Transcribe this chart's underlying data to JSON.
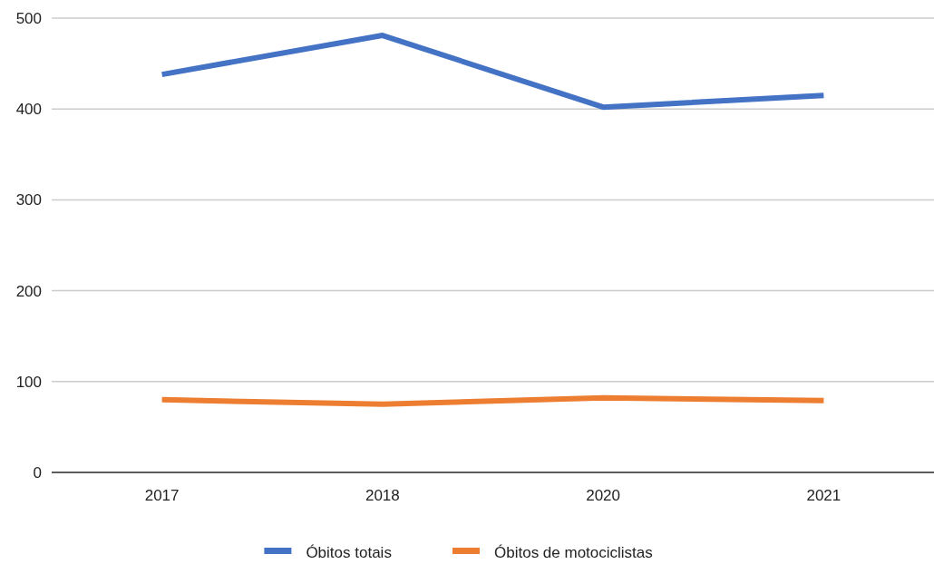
{
  "chart_data": {
    "type": "line",
    "categories": [
      "2017",
      "2018",
      "2020",
      "2021"
    ],
    "series": [
      {
        "name": "Óbitos totais",
        "color": "#4472c4",
        "values": [
          438,
          481,
          402,
          415
        ]
      },
      {
        "name": "Óbitos de motociclistas",
        "color": "#ed7d31",
        "values": [
          80,
          75,
          82,
          79
        ]
      }
    ],
    "ylim": [
      0,
      500
    ],
    "yticks": [
      0,
      100,
      200,
      300,
      400,
      500
    ],
    "grid": "y",
    "legend": "bottom",
    "marker": "none",
    "line_style": "solid"
  }
}
